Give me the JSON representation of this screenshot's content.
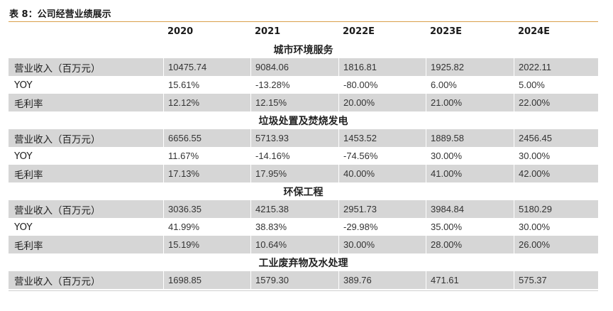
{
  "caption": "表 8：公司经营业绩展示",
  "header": [
    "",
    "2020",
    "2021",
    "2022E",
    "2023E",
    "2024E"
  ],
  "sections": [
    {
      "title": "城市环境服务",
      "rows": [
        {
          "label": "营业收入（百万元）",
          "values": [
            "10475.74",
            "9084.06",
            "1816.81",
            "1925.82",
            "2022.11"
          ]
        },
        {
          "label": "YOY",
          "values": [
            "15.61%",
            "-13.28%",
            "-80.00%",
            "6.00%",
            "5.00%"
          ]
        },
        {
          "label": "毛利率",
          "values": [
            "12.12%",
            "12.15%",
            "20.00%",
            "21.00%",
            "22.00%"
          ]
        }
      ]
    },
    {
      "title": "垃圾处置及焚烧发电",
      "rows": [
        {
          "label": "营业收入（百万元）",
          "values": [
            "6656.55",
            "5713.93",
            "1453.52",
            "1889.58",
            "2456.45"
          ]
        },
        {
          "label": "YOY",
          "values": [
            "11.67%",
            "-14.16%",
            "-74.56%",
            "30.00%",
            "30.00%"
          ]
        },
        {
          "label": "毛利率",
          "values": [
            "17.13%",
            "17.95%",
            "40.00%",
            "41.00%",
            "42.00%"
          ]
        }
      ]
    },
    {
      "title": "环保工程",
      "rows": [
        {
          "label": "营业收入（百万元）",
          "values": [
            "3036.35",
            "4215.38",
            "2951.73",
            "3984.84",
            "5180.29"
          ]
        },
        {
          "label": "YOY",
          "values": [
            "41.99%",
            "38.83%",
            "-29.98%",
            "35.00%",
            "30.00%"
          ]
        },
        {
          "label": "毛利率",
          "values": [
            "15.19%",
            "10.64%",
            "30.00%",
            "28.00%",
            "26.00%"
          ]
        }
      ]
    },
    {
      "title": "工业废弃物及水处理",
      "rows": [
        {
          "label": "营业收入（百万元）",
          "values": [
            "1698.85",
            "1579.30",
            "389.76",
            "471.61",
            "575.37"
          ]
        }
      ]
    }
  ]
}
